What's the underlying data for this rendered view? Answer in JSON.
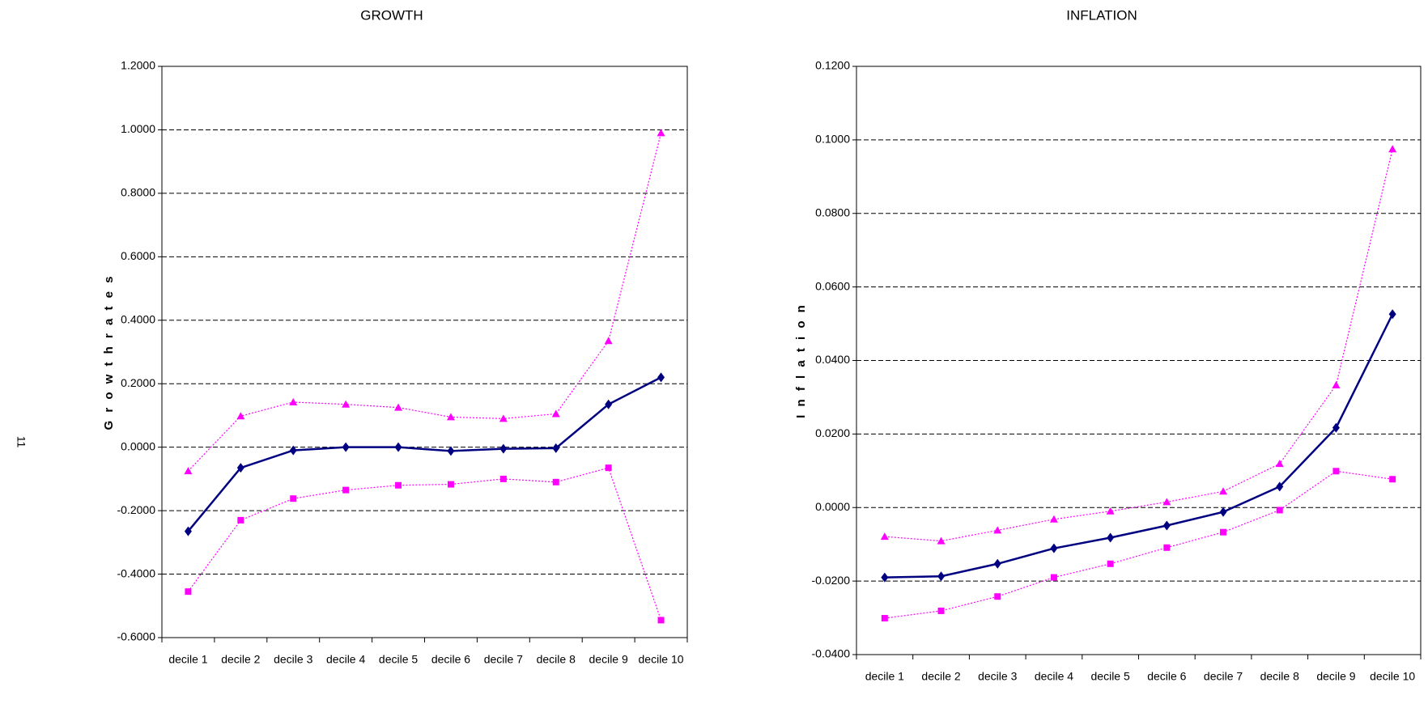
{
  "page_number": "11",
  "chart_data": [
    {
      "type": "line",
      "title": "GROWTH",
      "y_label": "G r o w t h  r a t e s",
      "grid": true,
      "grid_style": "dashed",
      "categories": [
        "decile 1",
        "decile 2",
        "decile 3",
        "decile 4",
        "decile 5",
        "decile 6",
        "decile 7",
        "decile 8",
        "decile 9",
        "decile 10"
      ],
      "ylim": [
        -0.6,
        1.2
      ],
      "yticks": [
        {
          "value": -0.6,
          "label": "-0.6000"
        },
        {
          "value": -0.4,
          "label": "-0.4000"
        },
        {
          "value": -0.2,
          "label": "-0.2000"
        },
        {
          "value": 0,
          "label": "0.0000"
        },
        {
          "value": 0.2,
          "label": "0.2000"
        },
        {
          "value": 0.4,
          "label": "0.4000"
        },
        {
          "value": 0.6,
          "label": "0.6000"
        },
        {
          "value": 0.8,
          "label": "0.8000"
        },
        {
          "value": 1.0,
          "label": "1.0000"
        },
        {
          "value": 1.2,
          "label": "1.2000"
        }
      ],
      "series": [
        {
          "color": "#ff00ff",
          "marker": "square",
          "line_style": "dotted",
          "values": [
            -0.455,
            -0.23,
            -0.162,
            -0.135,
            -0.12,
            -0.117,
            -0.1,
            -0.11,
            -0.065,
            -0.545
          ]
        },
        {
          "color": "#ff00ff",
          "marker": "triangle",
          "line_style": "dotted",
          "values": [
            -0.075,
            0.098,
            0.142,
            0.135,
            0.125,
            0.095,
            0.09,
            0.105,
            0.335,
            0.99
          ]
        },
        {
          "color": "#000080",
          "marker": "diamond",
          "line_style": "solid",
          "values": [
            -0.265,
            -0.065,
            -0.01,
            0.0,
            0.0,
            -0.012,
            -0.005,
            -0.003,
            0.135,
            0.22
          ]
        }
      ]
    },
    {
      "type": "line",
      "title": "INFLATION",
      "y_label": "I n f l a t i o n",
      "grid": true,
      "grid_style": "dashed",
      "categories": [
        "decile 1",
        "decile 2",
        "decile 3",
        "decile 4",
        "decile 5",
        "decile 6",
        "decile 7",
        "decile 8",
        "decile 9",
        "decile 10"
      ],
      "ylim": [
        -0.04,
        0.12
      ],
      "yticks": [
        {
          "value": -0.04,
          "label": "-0.0400"
        },
        {
          "value": -0.02,
          "label": "-0.0200"
        },
        {
          "value": 0,
          "label": "0.0000"
        },
        {
          "value": 0.02,
          "label": "0.0200"
        },
        {
          "value": 0.04,
          "label": "0.0400"
        },
        {
          "value": 0.06,
          "label": "0.0600"
        },
        {
          "value": 0.08,
          "label": "0.0800"
        },
        {
          "value": 0.1,
          "label": "0.1000"
        },
        {
          "value": 0.12,
          "label": "0.1200"
        }
      ],
      "series": [
        {
          "color": "#ff00ff",
          "marker": "square",
          "line_style": "dotted",
          "values": [
            -0.0301,
            -0.0281,
            -0.0242,
            -0.019,
            -0.0153,
            -0.0109,
            -0.0067,
            -0.0007,
            0.0099,
            0.0077
          ]
        },
        {
          "color": "#ff00ff",
          "marker": "triangle",
          "line_style": "dotted",
          "values": [
            -0.0079,
            -0.0091,
            -0.0062,
            -0.0032,
            -0.001,
            0.0015,
            0.0044,
            0.0119,
            0.0333,
            0.0975
          ]
        },
        {
          "color": "#000080",
          "marker": "diamond",
          "line_style": "solid",
          "values": [
            -0.019,
            -0.0187,
            -0.0153,
            -0.0111,
            -0.0082,
            -0.0049,
            -0.0012,
            0.0057,
            0.0217,
            0.0526
          ]
        }
      ]
    }
  ]
}
